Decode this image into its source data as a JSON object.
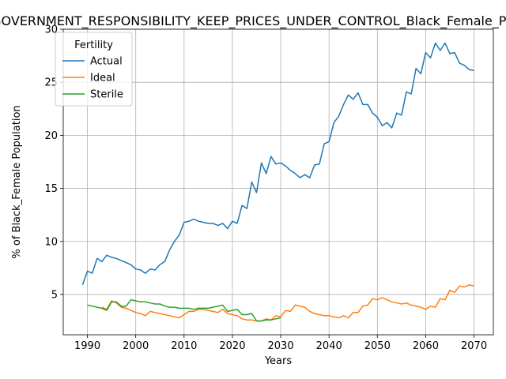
{
  "chart_data": {
    "type": "line",
    "title": "GOVERNMENT_RESPONSIBILITY_KEEP_PRICES_UNDER_CONTROL_Black_Female_Population",
    "xlabel": "Years",
    "ylabel": "% of Black_Female Population",
    "xlim": [
      1985,
      2074
    ],
    "ylim": [
      1.2,
      30
    ],
    "xticks": [
      1990,
      2000,
      2010,
      2020,
      2030,
      2040,
      2050,
      2060,
      2070
    ],
    "yticks": [
      5,
      10,
      15,
      20,
      25,
      30
    ],
    "grid": true,
    "legend": {
      "title": "Fertility",
      "placement": "top-left"
    },
    "series": [
      {
        "name": "Actual",
        "color": "#1f77b4",
        "x": [
          1989,
          1990,
          1991,
          1992,
          1993,
          1994,
          1995,
          1996,
          1997,
          1998,
          1999,
          2000,
          2001,
          2002,
          2003,
          2004,
          2005,
          2006,
          2007,
          2008,
          2009,
          2010,
          2011,
          2012,
          2013,
          2014,
          2015,
          2016,
          2017,
          2018,
          2019,
          2020,
          2021,
          2022,
          2023,
          2024,
          2025,
          2026,
          2027,
          2028,
          2029,
          2030,
          2031,
          2032,
          2033,
          2034,
          2035,
          2036,
          2037,
          2038,
          2039,
          2040,
          2041,
          2042,
          2043,
          2044,
          2045,
          2046,
          2047,
          2048,
          2049,
          2050,
          2051,
          2052,
          2053,
          2054,
          2055,
          2056,
          2057,
          2058,
          2059,
          2060,
          2061,
          2062,
          2063,
          2064,
          2065,
          2066,
          2067,
          2068,
          2069,
          2070
        ],
        "values": [
          5.9,
          7.2,
          7.0,
          8.4,
          8.1,
          8.7,
          8.5,
          8.4,
          8.2,
          8.0,
          7.8,
          7.4,
          7.3,
          7.0,
          7.4,
          7.3,
          7.8,
          8.1,
          9.2,
          10.0,
          10.6,
          11.8,
          11.9,
          12.1,
          11.9,
          11.8,
          11.7,
          11.7,
          11.5,
          11.7,
          11.2,
          11.9,
          11.7,
          13.4,
          13.1,
          15.6,
          14.6,
          17.4,
          16.4,
          18.0,
          17.3,
          17.4,
          17.1,
          16.7,
          16.4,
          16.0,
          16.3,
          16.0,
          17.2,
          17.3,
          19.2,
          19.4,
          21.2,
          21.8,
          22.9,
          23.8,
          23.4,
          24.0,
          22.9,
          22.9,
          22.1,
          21.7,
          20.9,
          21.2,
          20.7,
          22.1,
          21.9,
          24.1,
          23.9,
          26.3,
          25.8,
          27.8,
          27.3,
          28.7,
          28.0,
          28.7,
          27.7,
          27.8,
          26.8,
          26.6,
          26.2,
          26.1
        ]
      },
      {
        "name": "Ideal",
        "color": "#ff7f0e",
        "x": [
          1993,
          1994,
          1995,
          1996,
          1997,
          1998,
          1999,
          2000,
          2001,
          2002,
          2003,
          2004,
          2005,
          2006,
          2007,
          2008,
          2009,
          2010,
          2011,
          2012,
          2013,
          2014,
          2015,
          2016,
          2017,
          2018,
          2019,
          2020,
          2021,
          2022,
          2023,
          2024,
          2025,
          2026,
          2027,
          2028,
          2029,
          2030,
          2031,
          2032,
          2033,
          2034,
          2035,
          2036,
          2037,
          2038,
          2039,
          2040,
          2041,
          2042,
          2043,
          2044,
          2045,
          2046,
          2047,
          2048,
          2049,
          2050,
          2051,
          2052,
          2053,
          2054,
          2055,
          2056,
          2057,
          2058,
          2059,
          2060,
          2061,
          2062,
          2063,
          2064,
          2065,
          2066,
          2067,
          2068,
          2069,
          2070
        ],
        "values": [
          3.8,
          3.6,
          4.4,
          4.2,
          3.8,
          3.7,
          3.5,
          3.3,
          3.2,
          3.0,
          3.4,
          3.3,
          3.2,
          3.1,
          3.0,
          2.9,
          2.8,
          3.1,
          3.4,
          3.4,
          3.6,
          3.6,
          3.5,
          3.4,
          3.3,
          3.6,
          3.2,
          3.1,
          3.0,
          2.7,
          2.6,
          2.6,
          2.5,
          2.5,
          2.7,
          2.6,
          3.0,
          2.9,
          3.5,
          3.4,
          4.0,
          3.9,
          3.8,
          3.4,
          3.2,
          3.1,
          3.0,
          3.0,
          2.9,
          2.8,
          3.0,
          2.8,
          3.3,
          3.3,
          3.9,
          4.0,
          4.6,
          4.5,
          4.7,
          4.5,
          4.3,
          4.2,
          4.1,
          4.2,
          4.0,
          3.9,
          3.8,
          3.6,
          3.9,
          3.8,
          4.6,
          4.5,
          5.4,
          5.2,
          5.8,
          5.7,
          5.9,
          5.8
        ]
      },
      {
        "name": "Sterile",
        "color": "#2ca02c",
        "x": [
          1990,
          1991,
          1992,
          1993,
          1994,
          1995,
          1996,
          1997,
          1998,
          1999,
          2000,
          2001,
          2002,
          2003,
          2004,
          2005,
          2006,
          2007,
          2008,
          2009,
          2010,
          2011,
          2012,
          2013,
          2014,
          2015,
          2016,
          2017,
          2018,
          2019,
          2020,
          2021,
          2022,
          2023,
          2024,
          2025,
          2026,
          2027,
          2028,
          2029,
          2030
        ],
        "values": [
          4.0,
          3.9,
          3.8,
          3.7,
          3.5,
          4.3,
          4.3,
          3.9,
          3.9,
          4.5,
          4.4,
          4.3,
          4.3,
          4.2,
          4.1,
          4.1,
          3.9,
          3.8,
          3.8,
          3.7,
          3.7,
          3.7,
          3.6,
          3.7,
          3.7,
          3.7,
          3.8,
          3.9,
          4.0,
          3.4,
          3.5,
          3.6,
          3.1,
          3.1,
          3.2,
          2.5,
          2.5,
          2.6,
          2.6,
          2.7,
          2.8
        ]
      }
    ]
  }
}
